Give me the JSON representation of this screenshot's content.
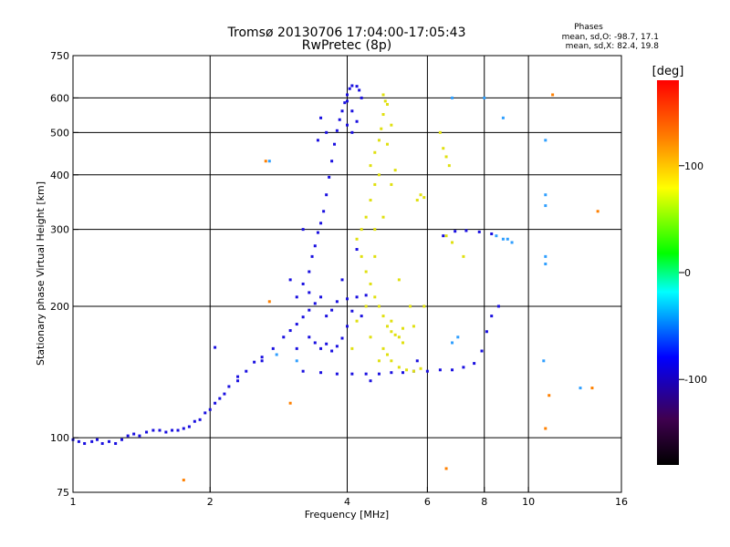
{
  "chart_data": {
    "type": "scatter",
    "title": "Tromsø 20130706 17:04:00-17:05:43",
    "subtitle": "RwPretec (8p)",
    "xlabel": "Frequency [MHz]",
    "ylabel": "Stationary phase Virtual Height [km]",
    "xscale": "log",
    "yscale": "log",
    "xlim": [
      1,
      16
    ],
    "ylim": [
      75,
      750
    ],
    "xticks": [
      1,
      2,
      4,
      6,
      8,
      10,
      16
    ],
    "xtick_labels": [
      "1",
      "2",
      "4",
      "6",
      "8",
      "10",
      "16"
    ],
    "xgrid": [
      2,
      4,
      6,
      8,
      10
    ],
    "yticks": [
      75,
      100,
      200,
      300,
      400,
      500,
      600,
      750
    ],
    "ytick_labels": [
      "75",
      "100",
      "200",
      "300",
      "400",
      "500",
      "600",
      "750"
    ],
    "ygrid": [
      100,
      200,
      300,
      400,
      500,
      600
    ],
    "grid": true,
    "colorbar": {
      "label": "[deg]",
      "range": [
        -180,
        180
      ],
      "ticks": [
        -100,
        0,
        100
      ],
      "tick_labels": [
        "-100",
        "0",
        "100"
      ],
      "colormap": "rainbow",
      "colors": [
        "#000000",
        "#400050",
        "#0000ff",
        "#00ffff",
        "#00ff00",
        "#ffff00",
        "#ff8000",
        "#ff0000"
      ]
    },
    "stats": {
      "heading": "Phases",
      "line_o": "mean, sd,O: -98.7, 17.1",
      "line_x": "mean, sd,X:  82.4, 19.8"
    },
    "series": [
      {
        "mode": "O",
        "color": "#1a10e0",
        "points": [
          [
            1.0,
            99
          ],
          [
            1.03,
            98
          ],
          [
            1.06,
            97
          ],
          [
            1.1,
            98
          ],
          [
            1.13,
            99
          ],
          [
            1.16,
            97
          ],
          [
            1.2,
            98
          ],
          [
            1.24,
            97
          ],
          [
            1.28,
            99
          ],
          [
            1.32,
            101
          ],
          [
            1.36,
            102
          ],
          [
            1.4,
            101
          ],
          [
            1.45,
            103
          ],
          [
            1.5,
            104
          ],
          [
            1.55,
            104
          ],
          [
            1.6,
            103
          ],
          [
            1.65,
            104
          ],
          [
            1.7,
            104
          ],
          [
            1.75,
            105
          ],
          [
            1.8,
            106
          ],
          [
            1.85,
            109
          ],
          [
            1.9,
            110
          ],
          [
            1.95,
            114
          ],
          [
            2.0,
            116
          ],
          [
            2.05,
            120
          ],
          [
            2.1,
            123
          ],
          [
            2.15,
            126
          ],
          [
            2.05,
            161
          ],
          [
            2.2,
            131
          ],
          [
            2.3,
            138
          ],
          [
            2.4,
            142
          ],
          [
            2.5,
            149
          ],
          [
            2.6,
            153
          ],
          [
            2.75,
            160
          ],
          [
            2.9,
            170
          ],
          [
            3.0,
            176
          ],
          [
            3.1,
            182
          ],
          [
            3.2,
            189
          ],
          [
            3.3,
            196
          ],
          [
            3.4,
            203
          ],
          [
            3.5,
            210
          ],
          [
            3.3,
            170
          ],
          [
            3.4,
            165
          ],
          [
            3.5,
            160
          ],
          [
            3.6,
            164
          ],
          [
            3.7,
            158
          ],
          [
            3.8,
            162
          ],
          [
            3.9,
            169
          ],
          [
            3.6,
            190
          ],
          [
            3.7,
            196
          ],
          [
            3.8,
            205
          ],
          [
            3.2,
            225
          ],
          [
            3.3,
            240
          ],
          [
            3.35,
            260
          ],
          [
            3.4,
            275
          ],
          [
            3.45,
            295
          ],
          [
            3.5,
            310
          ],
          [
            3.55,
            330
          ],
          [
            3.6,
            360
          ],
          [
            3.65,
            395
          ],
          [
            3.7,
            430
          ],
          [
            3.75,
            470
          ],
          [
            3.8,
            505
          ],
          [
            3.85,
            535
          ],
          [
            3.9,
            560
          ],
          [
            3.95,
            585
          ],
          [
            4.0,
            610
          ],
          [
            4.05,
            630
          ],
          [
            4.1,
            640
          ],
          [
            4.2,
            638
          ],
          [
            4.25,
            625
          ],
          [
            4.3,
            600
          ],
          [
            4.0,
            590
          ],
          [
            4.1,
            560
          ],
          [
            4.2,
            530
          ],
          [
            4.0,
            520
          ],
          [
            4.1,
            500
          ],
          [
            3.6,
            500
          ],
          [
            3.5,
            540
          ],
          [
            3.45,
            480
          ],
          [
            4.0,
            208
          ],
          [
            4.2,
            210
          ],
          [
            4.4,
            212
          ],
          [
            4.1,
            195
          ],
          [
            4.3,
            190
          ],
          [
            4.0,
            180
          ],
          [
            3.2,
            142
          ],
          [
            3.5,
            141
          ],
          [
            3.8,
            140
          ],
          [
            4.1,
            140
          ],
          [
            4.4,
            140
          ],
          [
            4.7,
            140
          ],
          [
            5.0,
            141
          ],
          [
            5.3,
            141
          ],
          [
            5.6,
            142
          ],
          [
            6.0,
            142
          ],
          [
            6.4,
            143
          ],
          [
            6.8,
            143
          ],
          [
            7.2,
            145
          ],
          [
            7.6,
            148
          ],
          [
            7.9,
            158
          ],
          [
            8.1,
            175
          ],
          [
            8.3,
            190
          ],
          [
            8.6,
            200
          ],
          [
            6.5,
            290
          ],
          [
            6.9,
            297
          ],
          [
            7.3,
            298
          ],
          [
            7.8,
            296
          ],
          [
            8.3,
            293
          ],
          [
            3.3,
            215
          ],
          [
            3.1,
            210
          ],
          [
            3.0,
            230
          ],
          [
            3.2,
            300
          ],
          [
            2.6,
            150
          ],
          [
            2.3,
            135
          ],
          [
            3.1,
            160
          ],
          [
            4.5,
            135
          ],
          [
            5.7,
            150
          ],
          [
            3.9,
            230
          ],
          [
            4.2,
            270
          ]
        ]
      },
      {
        "mode": "X",
        "color": "#e0e010",
        "points": [
          [
            4.5,
            420
          ],
          [
            4.6,
            450
          ],
          [
            4.7,
            480
          ],
          [
            4.75,
            510
          ],
          [
            4.8,
            550
          ],
          [
            4.85,
            590
          ],
          [
            4.8,
            610
          ],
          [
            4.9,
            580
          ],
          [
            5.0,
            520
          ],
          [
            4.9,
            470
          ],
          [
            4.7,
            400
          ],
          [
            4.6,
            380
          ],
          [
            4.5,
            350
          ],
          [
            4.4,
            320
          ],
          [
            4.3,
            300
          ],
          [
            4.2,
            285
          ],
          [
            4.3,
            260
          ],
          [
            4.4,
            240
          ],
          [
            4.5,
            225
          ],
          [
            4.6,
            210
          ],
          [
            4.7,
            200
          ],
          [
            4.8,
            190
          ],
          [
            4.9,
            180
          ],
          [
            5.0,
            175
          ],
          [
            5.1,
            172
          ],
          [
            5.2,
            170
          ],
          [
            4.8,
            160
          ],
          [
            4.9,
            155
          ],
          [
            5.0,
            150
          ],
          [
            5.2,
            145
          ],
          [
            5.4,
            143
          ],
          [
            5.6,
            142
          ],
          [
            5.8,
            144
          ],
          [
            5.0,
            185
          ],
          [
            5.3,
            178
          ],
          [
            5.5,
            200
          ],
          [
            5.7,
            350
          ],
          [
            5.8,
            360
          ],
          [
            5.9,
            355
          ],
          [
            6.4,
            500
          ],
          [
            6.5,
            460
          ],
          [
            6.6,
            440
          ],
          [
            6.7,
            420
          ],
          [
            4.6,
            300
          ],
          [
            4.8,
            320
          ],
          [
            5.0,
            380
          ],
          [
            5.1,
            410
          ],
          [
            4.6,
            260
          ],
          [
            5.2,
            230
          ],
          [
            5.6,
            180
          ],
          [
            4.4,
            200
          ],
          [
            4.5,
            170
          ],
          [
            4.7,
            150
          ],
          [
            5.3,
            165
          ],
          [
            4.2,
            185
          ],
          [
            4.1,
            160
          ],
          [
            6.6,
            290
          ],
          [
            6.8,
            280
          ],
          [
            7.2,
            260
          ],
          [
            5.9,
            200
          ]
        ]
      },
      {
        "mode": "isolated",
        "color": "#2f9fff",
        "points": [
          [
            10.9,
            480
          ],
          [
            10.9,
            360
          ],
          [
            10.9,
            340
          ],
          [
            10.9,
            260
          ],
          [
            10.9,
            250
          ],
          [
            10.8,
            150
          ],
          [
            8.8,
            285
          ],
          [
            8.5,
            290
          ],
          [
            9.0,
            285
          ],
          [
            9.2,
            280
          ],
          [
            2.8,
            155
          ],
          [
            3.1,
            150
          ],
          [
            7.0,
            170
          ],
          [
            6.8,
            165
          ],
          [
            8.0,
            600
          ],
          [
            6.8,
            600
          ],
          [
            8.8,
            540
          ],
          [
            2.7,
            430
          ],
          [
            13.0,
            130
          ]
        ]
      },
      {
        "mode": "misc",
        "color": "#ff8000",
        "points": [
          [
            2.65,
            430
          ],
          [
            11.3,
            610
          ],
          [
            14.2,
            330
          ],
          [
            13.8,
            130
          ],
          [
            10.9,
            105
          ],
          [
            1.75,
            80
          ],
          [
            6.6,
            85
          ],
          [
            11.1,
            125
          ],
          [
            2.7,
            205
          ],
          [
            3.0,
            120
          ]
        ]
      }
    ]
  }
}
